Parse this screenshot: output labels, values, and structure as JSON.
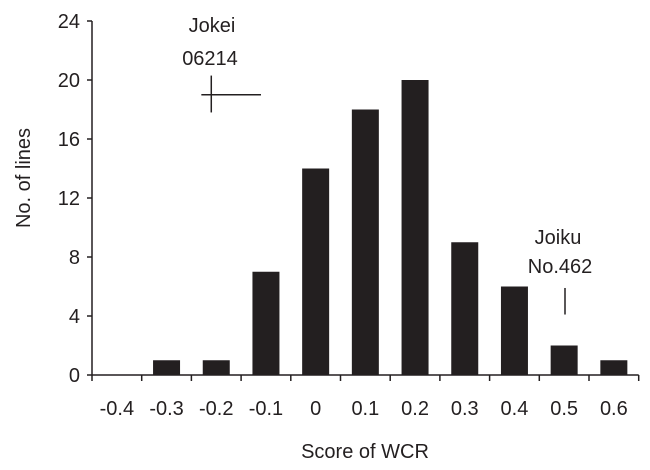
{
  "chart_data": {
    "type": "bar",
    "title": "",
    "xlabel": "Score of WCR",
    "ylabel": "No. of lines",
    "categories": [
      "-0.4",
      "-0.3",
      "-0.2",
      "-0.1",
      "0",
      "0.1",
      "0.2",
      "0.3",
      "0.4",
      "0.5",
      "0.6"
    ],
    "values": [
      0,
      1,
      1,
      7,
      14,
      18,
      20,
      9,
      6,
      2,
      1
    ],
    "ylim": [
      0,
      24
    ],
    "yticks": [
      0,
      4,
      8,
      12,
      16,
      20,
      24
    ],
    "grid": false,
    "bar_color": "#231f20",
    "annotations": [
      {
        "lines": [
          "Jokei",
          "06214"
        ],
        "x": -0.21,
        "y": 19,
        "marker": "cross",
        "x_range": [
          -0.23,
          -0.11
        ],
        "y_range": [
          17.8,
          20.3
        ]
      },
      {
        "lines": [
          "Joiku",
          "No.462"
        ],
        "x": 0.5,
        "y": 4,
        "marker": "vline",
        "y_range": [
          4.1,
          5.9
        ]
      }
    ]
  }
}
